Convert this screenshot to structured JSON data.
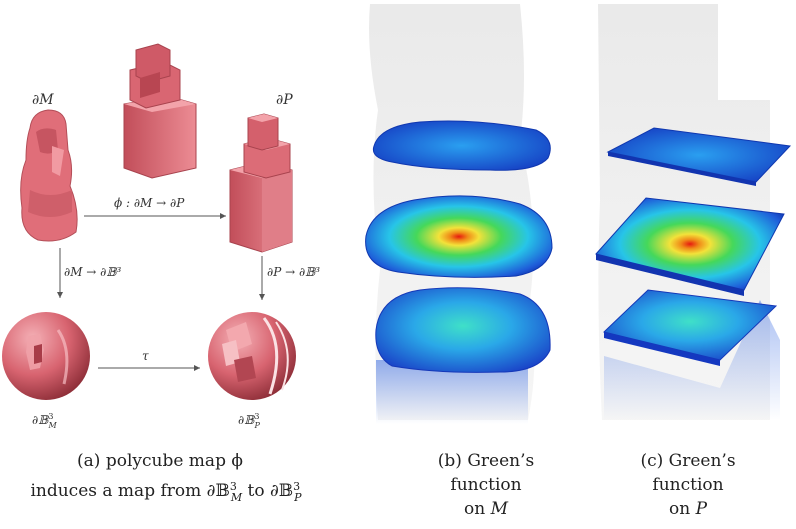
{
  "panel_a": {
    "labels": {
      "boundary_M": "∂M",
      "boundary_P": "∂P",
      "map_phi": "ϕ : ∂M → ∂P",
      "map_M_ball": "∂M → ∂𝔹³",
      "map_P_ball": "∂P → ∂𝔹³",
      "tau": "τ",
      "ball_M_base": "∂𝔹",
      "ball_M_sup": "3",
      "ball_M_sub": "M",
      "ball_P_base": "∂𝔹",
      "ball_P_sup": "3",
      "ball_P_sub": "P"
    },
    "caption": {
      "line1": "(a) polycube map ϕ",
      "line2_prefix": "induces a map from ∂𝔹",
      "line2_sup1": "3",
      "line2_sub1": "M",
      "line2_mid": " to ∂𝔹",
      "line2_sup2": "3",
      "line2_sub2": "P"
    }
  },
  "panel_b": {
    "caption": {
      "line1": "(b) Green’s",
      "line2": "function",
      "line3_prefix": "on ",
      "line3_var": "M"
    }
  },
  "panel_c": {
    "caption": {
      "line1": "(c) Green’s",
      "line2": "function",
      "line3_prefix": "on ",
      "line3_var": "P"
    }
  },
  "colors": {
    "pink": "#e0707a",
    "pink_dark": "#b24a55",
    "slice_blue": "#1e5ad8",
    "slice_cyan": "#27c5e8",
    "slice_green": "#45d85a",
    "slice_yellow": "#f3e23a",
    "slice_red": "#e61a10"
  }
}
